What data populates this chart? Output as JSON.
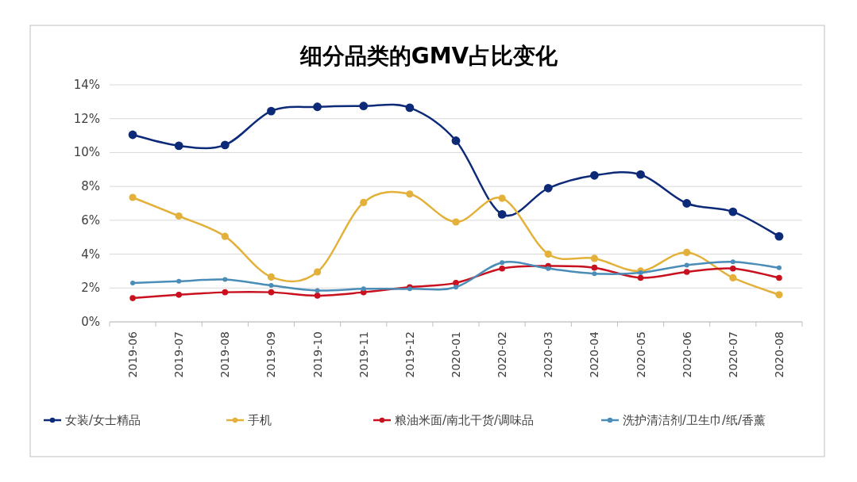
{
  "chart_data": {
    "type": "line",
    "title": "细分品类的GMV占比变化",
    "categories": [
      "2019-06",
      "2019-07",
      "2019-08",
      "2019-09",
      "2019-10",
      "2019-11",
      "2019-12",
      "2020-01",
      "2020-02",
      "2020-03",
      "2020-04",
      "2020-05",
      "2020-06",
      "2020-07",
      "2020-08"
    ],
    "series": [
      {
        "name": "女装/女士精品",
        "color": "#0d2a78",
        "values": [
          11.05,
          10.4,
          10.45,
          12.45,
          12.7,
          12.75,
          12.65,
          10.7,
          6.35,
          7.9,
          8.65,
          8.7,
          7.0,
          6.5,
          5.05
        ]
      },
      {
        "name": "手机",
        "color": "#e3b13a",
        "values": [
          7.35,
          6.25,
          5.05,
          2.65,
          2.95,
          7.05,
          7.55,
          5.9,
          7.3,
          4.0,
          3.75,
          3.0,
          4.1,
          2.6,
          1.6
        ]
      },
      {
        "name": "粮油米面/南北干货/调味品",
        "color": "#c8101e",
        "values": [
          1.4,
          1.6,
          1.75,
          1.75,
          1.55,
          1.75,
          2.05,
          2.3,
          3.15,
          3.3,
          3.2,
          2.6,
          2.95,
          3.15,
          2.6
        ]
      },
      {
        "name": "洗护清洁剂/卫生巾/纸/香薰",
        "color": "#4a8db8",
        "values": [
          2.3,
          2.4,
          2.5,
          2.15,
          1.85,
          1.95,
          1.95,
          2.05,
          3.5,
          3.15,
          2.85,
          2.9,
          3.35,
          3.55,
          3.2
        ]
      }
    ],
    "ylim": [
      0,
      14
    ],
    "yticks": [
      {
        "value": 0,
        "label": "0%"
      },
      {
        "value": 2,
        "label": "2%"
      },
      {
        "value": 4,
        "label": "4%"
      },
      {
        "value": 6,
        "label": "6%"
      },
      {
        "value": 8,
        "label": "8%"
      },
      {
        "value": 10,
        "label": "10%"
      },
      {
        "value": 12,
        "label": "12%"
      },
      {
        "value": 14,
        "label": "14%"
      }
    ],
    "grid": "y",
    "legend": "bottom",
    "marker": "circle",
    "line_style": "solid"
  }
}
